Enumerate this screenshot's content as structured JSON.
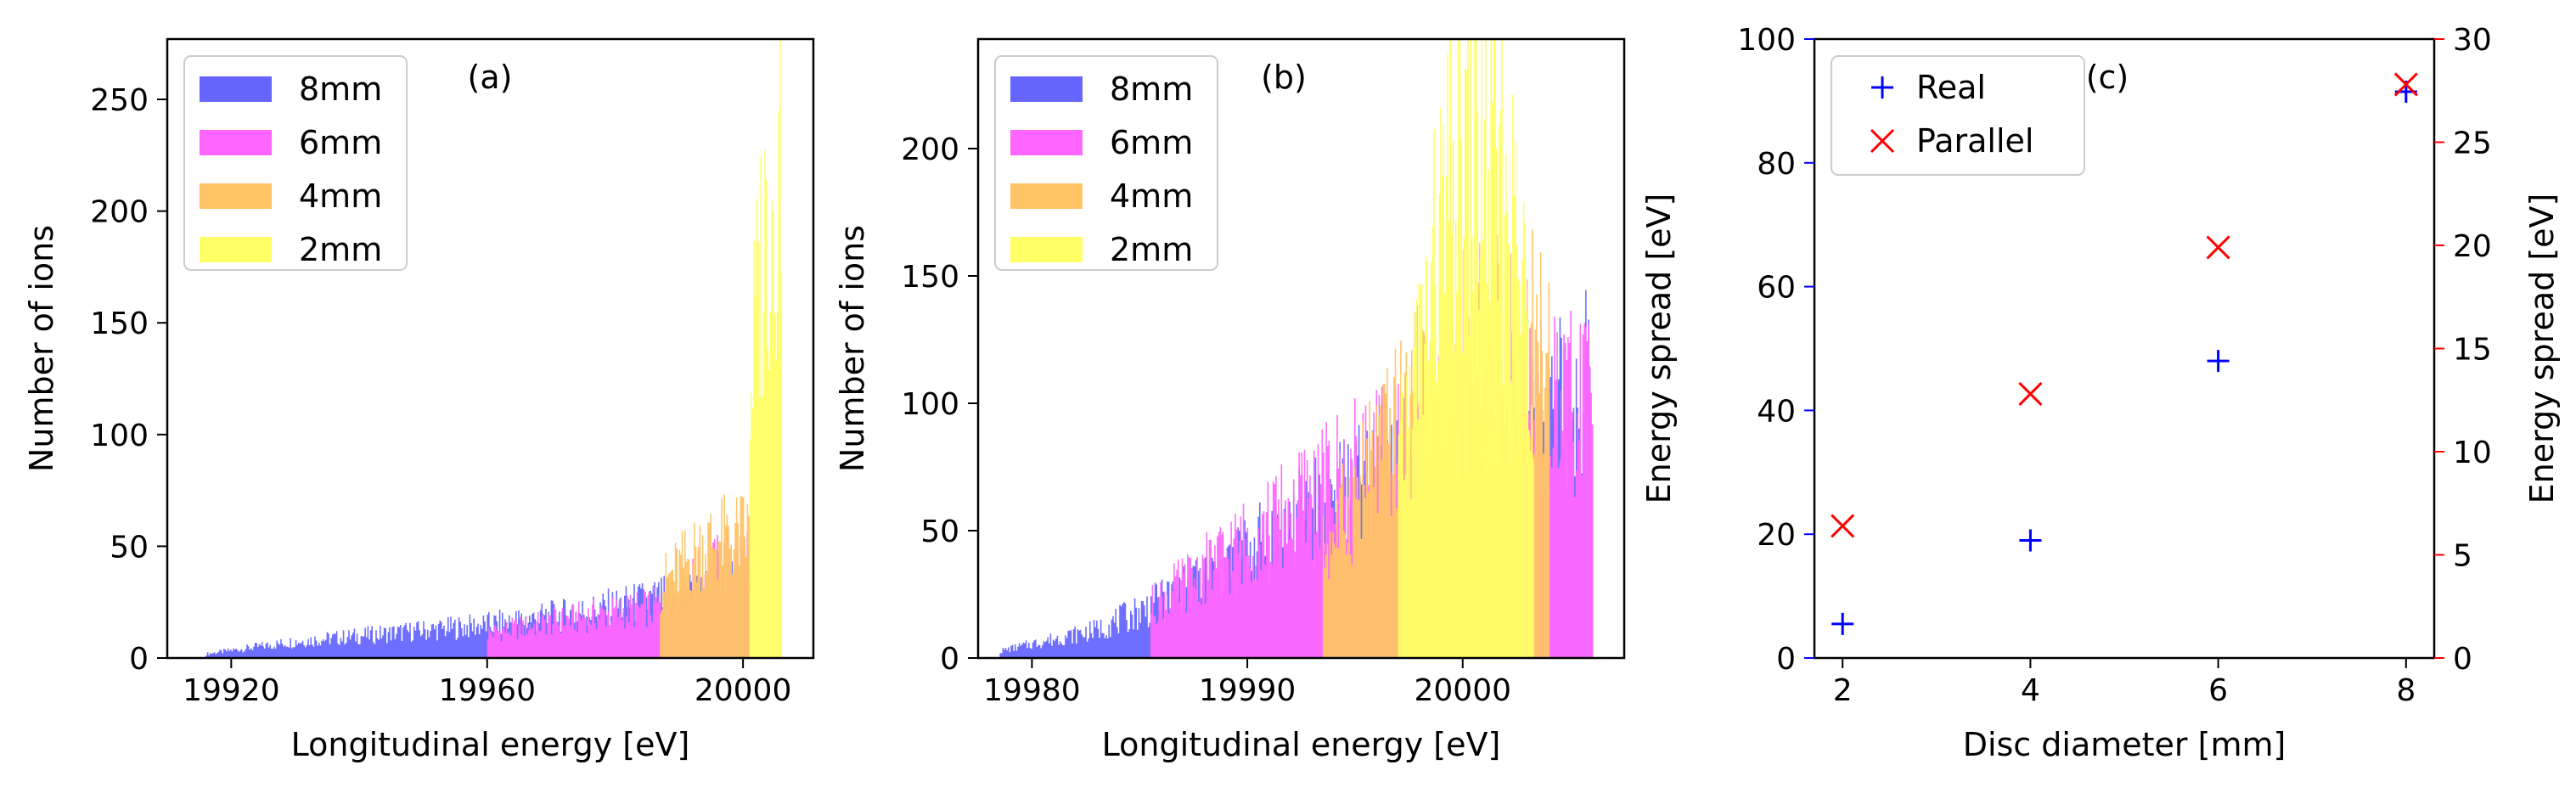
{
  "chart_data": [
    {
      "type": "histogram",
      "panel_label": "(a)",
      "xlabel": "Longitudinal energy [eV]",
      "ylabel": "Number of ions",
      "xlim": [
        19910,
        20011
      ],
      "ylim": [
        0,
        277
      ],
      "xticks": [
        19920,
        19960,
        20000
      ],
      "yticks": [
        0,
        50,
        100,
        150,
        200,
        250
      ],
      "legend_position": "upper-left",
      "series": [
        {
          "name": "8mm",
          "color": "#6666ff",
          "range": [
            19916,
            20001
          ],
          "profile": [
            [
              19916,
              2
            ],
            [
              19930,
              8
            ],
            [
              19945,
              12
            ],
            [
              19960,
              16
            ],
            [
              19975,
              22
            ],
            [
              19990,
              30
            ],
            [
              20001,
              35
            ]
          ]
        },
        {
          "name": "6mm",
          "color": "#ff66ff",
          "range": [
            19960,
            20001
          ],
          "profile": [
            [
              19960,
              12
            ],
            [
              19975,
              20
            ],
            [
              19987,
              25
            ],
            [
              19995,
              42
            ],
            [
              20001,
              50
            ]
          ]
        },
        {
          "name": "4mm",
          "color": "#ffc466",
          "range": [
            19987,
            20001
          ],
          "profile": [
            [
              19987,
              35
            ],
            [
              19994,
              55
            ],
            [
              20001,
              60
            ]
          ]
        },
        {
          "name": "2mm",
          "color": "#ffff66",
          "range": [
            20001,
            20006
          ],
          "profile": [
            [
              20001,
              130
            ],
            [
              20003,
              200
            ],
            [
              20006,
              250
            ]
          ]
        }
      ]
    },
    {
      "type": "histogram",
      "panel_label": "(b)",
      "xlabel": "Longitudinal energy [eV]",
      "ylabel": "Number of ions",
      "xlim": [
        19977.5,
        20007.5
      ],
      "ylim": [
        0,
        243
      ],
      "xticks": [
        19980,
        19990,
        20000
      ],
      "yticks": [
        0,
        50,
        100,
        150,
        200
      ],
      "legend_position": "upper-left",
      "series": [
        {
          "name": "8mm",
          "color": "#6666ff",
          "range": [
            19978.5,
            20006
          ],
          "profile": [
            [
              19978.5,
              3
            ],
            [
              19983,
              12
            ],
            [
              19987,
              28
            ],
            [
              19990,
              45
            ],
            [
              19993,
              62
            ],
            [
              19997,
              78
            ],
            [
              20001,
              90
            ],
            [
              20004,
              100
            ],
            [
              20006,
              115
            ]
          ]
        },
        {
          "name": "6mm",
          "color": "#ff66ff",
          "range": [
            19985.5,
            20006
          ],
          "profile": [
            [
              19985.5,
              22
            ],
            [
              19990,
              50
            ],
            [
              19994,
              75
            ],
            [
              19998,
              90
            ],
            [
              20003,
              100
            ],
            [
              20006,
              110
            ]
          ]
        },
        {
          "name": "4mm",
          "color": "#ffc466",
          "range": [
            19993.5,
            20004
          ],
          "profile": [
            [
              19993.5,
              45
            ],
            [
              19996,
              85
            ],
            [
              19999,
              120
            ],
            [
              20002,
              130
            ],
            [
              20004,
              135
            ]
          ]
        },
        {
          "name": "2mm",
          "color": "#ffff66",
          "range": [
            19997,
            20003.3
          ],
          "profile": [
            [
              19997,
              80
            ],
            [
              19999,
              180
            ],
            [
              20000.5,
              215
            ],
            [
              20002,
              190
            ],
            [
              20003.3,
              130
            ]
          ]
        }
      ]
    },
    {
      "type": "scatter",
      "panel_label": "(c)",
      "xlabel": "Disc diameter [mm]",
      "ylabel_left": "Energy spread [eV]",
      "ylabel_right": "Energy spread [eV]",
      "xlim": [
        1.7,
        8.3
      ],
      "ylim_left": [
        0,
        100
      ],
      "ylim_right": [
        0,
        30
      ],
      "xticks": [
        2,
        4,
        6,
        8
      ],
      "yticks_left": [
        0,
        20,
        40,
        60,
        80,
        100
      ],
      "yticks_right": [
        0,
        5,
        10,
        15,
        20,
        25,
        30
      ],
      "left_color": "#0000ff",
      "right_color": "#ff0000",
      "legend_position": "upper-left",
      "series": [
        {
          "name": "Real",
          "marker": "+",
          "color": "#0000ff",
          "axis": "left",
          "x": [
            2,
            4,
            6,
            8
          ],
          "y": [
            5.5,
            19,
            48,
            91.5
          ]
        },
        {
          "name": "Parallel",
          "marker": "x",
          "color": "#ff0000",
          "axis": "right",
          "x": [
            2,
            4,
            6,
            8
          ],
          "y": [
            6.4,
            12.8,
            19.9,
            27.8
          ]
        }
      ]
    }
  ]
}
